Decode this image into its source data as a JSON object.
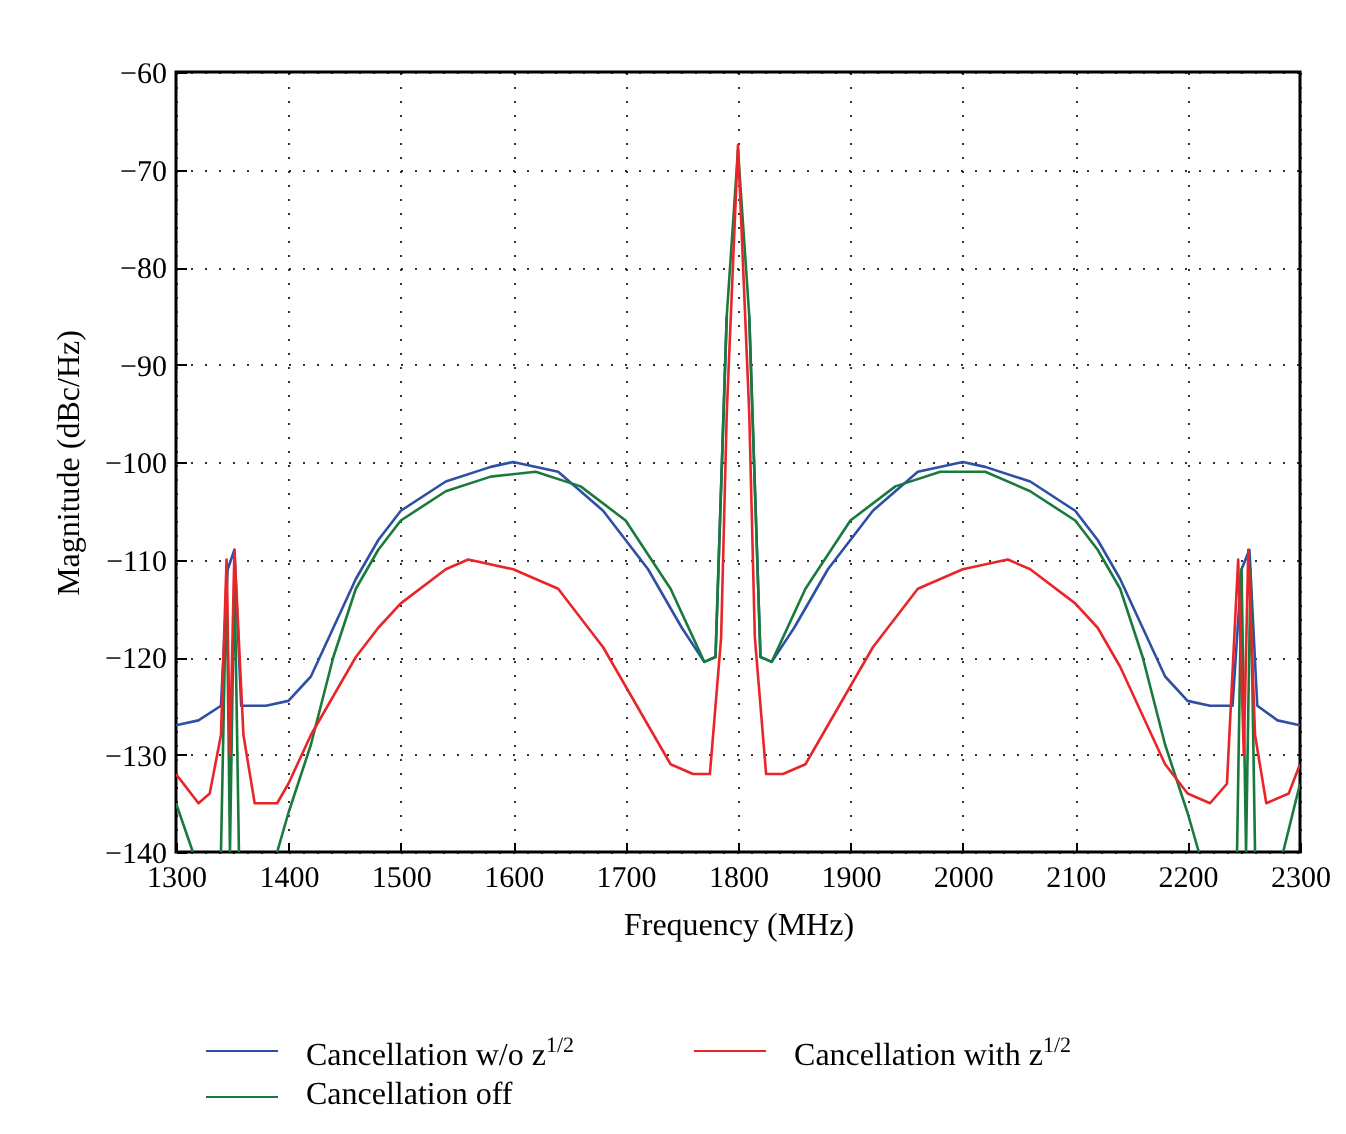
{
  "chart_data": {
    "type": "line",
    "xlabel": "Frequency (MHz)",
    "ylabel": "Magnitude (dBc/Hz)",
    "xlim": [
      1300,
      2300
    ],
    "xticks": [
      1300,
      1400,
      1500,
      1600,
      1700,
      1800,
      1900,
      2000,
      2100,
      2200,
      2300
    ],
    "ylim": [
      -140,
      -60
    ],
    "yticks": [
      -140,
      -130,
      -120,
      -110,
      -100,
      -90,
      -80,
      -70,
      -60
    ],
    "grid": true,
    "legend": "bottom",
    "line_style": "solid",
    "series": [
      {
        "name": "Cancellation w/o z$^{1/2}$",
        "color": "#2e4fa3",
        "x": [
          1300,
          1320,
          1340,
          1346,
          1352,
          1358,
          1380,
          1400,
          1420,
          1440,
          1460,
          1480,
          1500,
          1540,
          1580,
          1600,
          1640,
          1680,
          1720,
          1750,
          1770,
          1780,
          1790,
          1800,
          1810,
          1820,
          1830,
          1850,
          1880,
          1920,
          1960,
          2000,
          2020,
          2060,
          2100,
          2120,
          2140,
          2160,
          2180,
          2200,
          2220,
          2240,
          2248,
          2255,
          2262,
          2280,
          2300
        ],
        "values": [
          -127,
          -126.5,
          -125,
          -111,
          -109,
          -125,
          -125,
          -124.5,
          -122,
          -117,
          -112,
          -108,
          -105,
          -102,
          -100.5,
          -100,
          -101,
          -105,
          -111,
          -117,
          -120.5,
          -120,
          -85,
          null,
          -85,
          -120,
          -120.5,
          -117,
          -111,
          -105,
          -101,
          -100,
          -100.5,
          -102,
          -105,
          -108,
          -112,
          -117,
          -122,
          -124.5,
          -125,
          -125,
          -111,
          -109,
          -125,
          -126.5,
          -127
        ]
      },
      {
        "name": "Cancellation off",
        "color": "#1a7a3c",
        "x": [
          1300,
          1315,
          1330,
          1340,
          1345,
          1348,
          1352,
          1356,
          1375,
          1390,
          1400,
          1420,
          1440,
          1460,
          1480,
          1500,
          1540,
          1580,
          1620,
          1660,
          1700,
          1740,
          1770,
          1780,
          1790,
          1800,
          1810,
          1820,
          1830,
          1860,
          1900,
          1940,
          1980,
          2020,
          2060,
          2100,
          2120,
          2140,
          2160,
          2180,
          2200,
          2210,
          2230,
          2244,
          2248,
          2252,
          2256,
          2260,
          2275,
          2285,
          2300
        ],
        "values": [
          -135,
          -140,
          null,
          -140,
          -111,
          -140,
          -111,
          -140,
          null,
          -140,
          -136,
          -129,
          -120,
          -113,
          -109,
          -106,
          -103,
          -101.5,
          -101,
          -102.5,
          -106,
          -113,
          -120.5,
          -120,
          -85,
          -68,
          -85,
          -120,
          -120.5,
          -113,
          -106,
          -102.5,
          -101,
          -101,
          -103,
          -106,
          -109,
          -113,
          -120,
          -129,
          -136,
          -140,
          null,
          -140,
          -111,
          -140,
          -111,
          -140,
          null,
          -140,
          -133
        ]
      },
      {
        "name": "Cancellation with z$^{1/2}$",
        "color": "#e8262a",
        "x": [
          1300,
          1320,
          1330,
          1340,
          1345,
          1348,
          1352,
          1360,
          1370,
          1390,
          1400,
          1420,
          1440,
          1460,
          1480,
          1500,
          1540,
          1560,
          1600,
          1640,
          1680,
          1720,
          1740,
          1760,
          1775,
          1785,
          1790,
          1800,
          1810,
          1815,
          1825,
          1840,
          1860,
          1880,
          1920,
          1960,
          2000,
          2040,
          2060,
          2100,
          2120,
          2140,
          2160,
          2180,
          2200,
          2220,
          2235,
          2245,
          2250,
          2254,
          2260,
          2270,
          2290,
          2300
        ],
        "values": [
          -132,
          -135,
          -134,
          -128,
          -110,
          -130,
          -109,
          -128,
          -135,
          -135,
          -133,
          -128,
          -124,
          -120,
          -117,
          -114.5,
          -111,
          -110,
          -111,
          -113,
          -119,
          -127,
          -131,
          -132,
          -132,
          -118,
          -95,
          -67.5,
          -95,
          -118,
          -132,
          -132,
          -131,
          -127,
          -119,
          -113,
          -111,
          -110,
          -111,
          -114.5,
          -117,
          -121,
          -126,
          -131,
          -134,
          -135,
          -133,
          -110,
          -130,
          -109,
          -128,
          -135,
          -134,
          -131
        ]
      }
    ]
  }
}
